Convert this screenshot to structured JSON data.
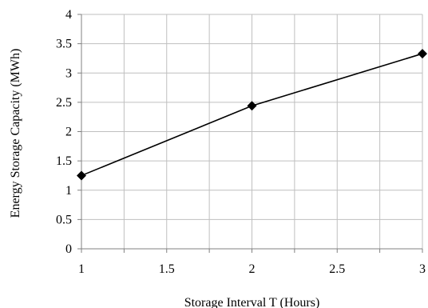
{
  "chart_data": {
    "type": "line",
    "xlabel": "Storage Interval T (Hours)",
    "ylabel": "Energy Storage Capacity (MWh)",
    "xlim": [
      1,
      3
    ],
    "ylim": [
      0,
      4
    ],
    "x_ticks": [
      "1",
      "1.5",
      "2",
      "2.5",
      "3"
    ],
    "y_ticks": [
      "0",
      "0.5",
      "1",
      "1.5",
      "2",
      "2.5",
      "3",
      "3.5",
      "4"
    ],
    "grid": true,
    "x_grid_step": 0.25,
    "series": [
      {
        "x": [
          1,
          2,
          3
        ],
        "values": [
          1.25,
          2.44,
          3.33
        ],
        "marker": "diamond",
        "color": "#000000"
      }
    ]
  }
}
